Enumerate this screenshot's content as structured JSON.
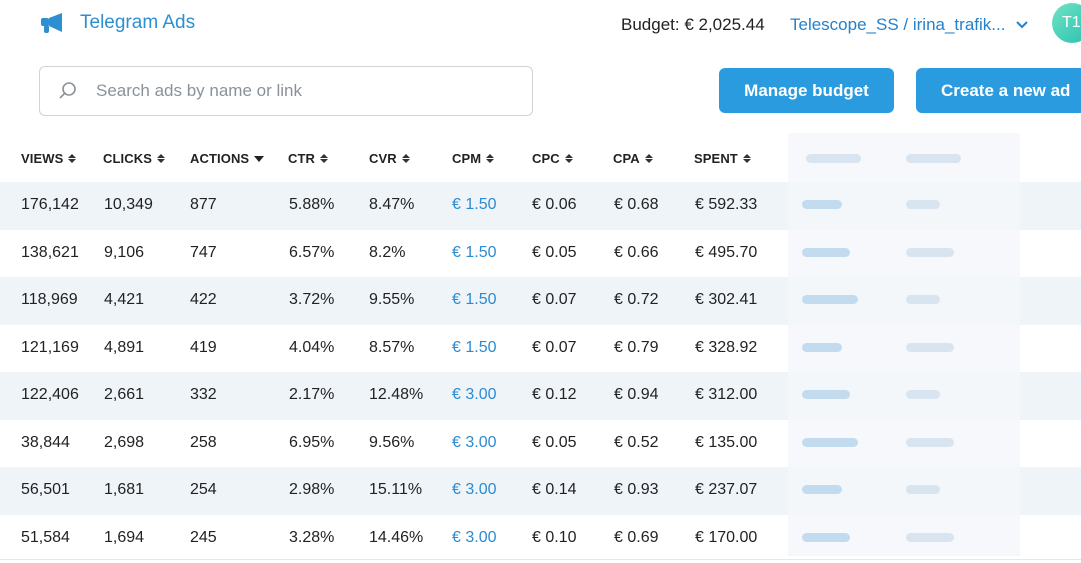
{
  "header": {
    "logo_text": "Telegram Ads",
    "budget": "Budget: € 2,025.44",
    "account": "Telescope_SS / irina_trafik...",
    "avatar": "T1"
  },
  "search": {
    "placeholder": "Search ads by name or link"
  },
  "buttons": {
    "manage": "Manage budget",
    "create": "Create a new ad"
  },
  "columns": [
    "VIEWS",
    "CLICKS",
    "ACTIONS",
    "CTR",
    "CVR",
    "CPM",
    "CPC",
    "CPA",
    "SPENT"
  ],
  "rows": [
    [
      "176,142",
      "10,349",
      "877",
      "5.88%",
      "8.47%",
      "€ 1.50",
      "€ 0.06",
      "€ 0.68",
      "€ 592.33"
    ],
    [
      "138,621",
      "9,106",
      "747",
      "6.57%",
      "8.2%",
      "€ 1.50",
      "€ 0.05",
      "€ 0.66",
      "€ 495.70"
    ],
    [
      "118,969",
      "4,421",
      "422",
      "3.72%",
      "9.55%",
      "€ 1.50",
      "€ 0.07",
      "€ 0.72",
      "€ 302.41"
    ],
    [
      "121,169",
      "4,891",
      "419",
      "4.04%",
      "8.57%",
      "€ 1.50",
      "€ 0.07",
      "€ 0.79",
      "€ 328.92"
    ],
    [
      "122,406",
      "2,661",
      "332",
      "2.17%",
      "12.48%",
      "€ 3.00",
      "€ 0.12",
      "€ 0.94",
      "€ 312.00"
    ],
    [
      "38,844",
      "2,698",
      "258",
      "6.95%",
      "9.56%",
      "€ 3.00",
      "€ 0.05",
      "€ 0.52",
      "€ 135.00"
    ],
    [
      "56,501",
      "1,681",
      "254",
      "2.98%",
      "15.11%",
      "€ 3.00",
      "€ 0.14",
      "€ 0.93",
      "€ 237.07"
    ],
    [
      "51,584",
      "1,694",
      "245",
      "3.28%",
      "14.46%",
      "€ 3.00",
      "€ 0.10",
      "€ 0.69",
      "€ 170.00"
    ]
  ],
  "colors": {
    "accent": "#2b9be0",
    "link": "#2a8bd2",
    "row_alt": "#eff4f9"
  }
}
